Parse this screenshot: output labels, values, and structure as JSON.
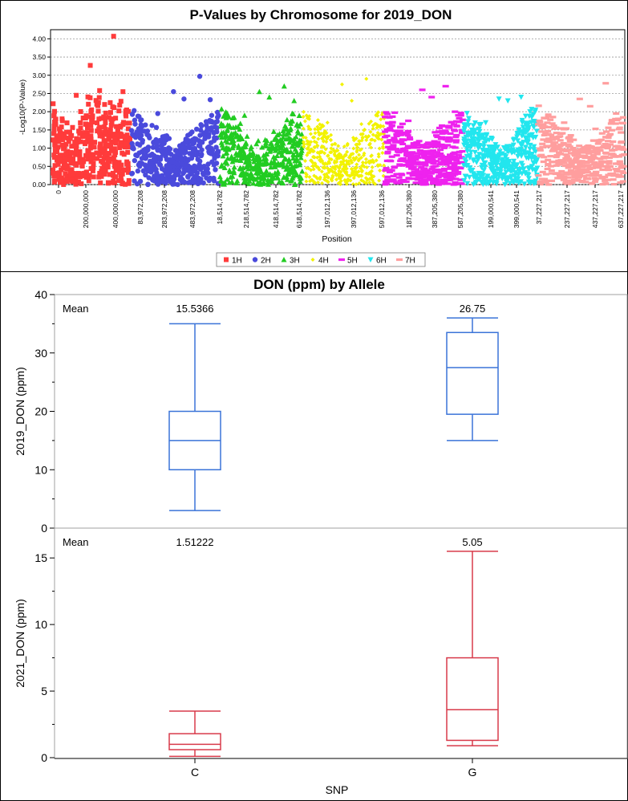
{
  "chart_data": [
    {
      "type": "scatter",
      "title": "P-Values by Chromosome for 2019_DON",
      "xlabel": "Position",
      "ylabel": "-Log10(P-Value)",
      "ylim": [
        0,
        4.25
      ],
      "y_ticks": [
        "0.00",
        "0.50",
        "1.00",
        "1.50",
        "2.00",
        "2.50",
        "3.00",
        "3.50",
        "4.00"
      ],
      "grid": true,
      "legend_position": "bottom",
      "x_tick_labels": [
        "0",
        "200,000,000",
        "400,000,000",
        "83,972,208",
        "283,972,208",
        "483,972,208",
        "18,514,782",
        "218,514,782",
        "418,514,782",
        "618,514,782",
        "197,012,136",
        "397,012,136",
        "597,012,136",
        "187,205,380",
        "387,205,380",
        "587,205,380",
        "199,000,541",
        "399,000,541",
        "37,227,217",
        "237,227,217",
        "437,227,217",
        "637,227,217"
      ],
      "series": [
        {
          "name": "1H",
          "marker": "square",
          "color": "#ff3b3b",
          "top_points": [
            4.07,
            3.27,
            2.58,
            2.55,
            2.45
          ]
        },
        {
          "name": "2H",
          "marker": "circle",
          "color": "#4a4adc",
          "top_points": [
            2.97,
            2.55,
            2.35,
            2.33,
            1.95
          ]
        },
        {
          "name": "3H",
          "marker": "triangle-up",
          "color": "#22cc22",
          "top_points": [
            2.7,
            2.55,
            2.4,
            2.3,
            1.9
          ]
        },
        {
          "name": "4H",
          "marker": "diamond",
          "color": "#f2f200",
          "top_points": [
            2.9,
            2.75,
            2.3,
            1.9,
            1.7
          ]
        },
        {
          "name": "5H",
          "marker": "dash",
          "color": "#ee22ee",
          "top_points": [
            2.7,
            2.6,
            2.4,
            2.0,
            1.75
          ]
        },
        {
          "name": "6H",
          "marker": "triangle-down",
          "color": "#22e6ee",
          "top_points": [
            2.4,
            2.35,
            2.3,
            2.0,
            1.7
          ]
        },
        {
          "name": "7H",
          "marker": "dash",
          "color": "#ff9e9e",
          "top_points": [
            2.78,
            2.35,
            2.15,
            1.95,
            1.7
          ]
        }
      ]
    },
    {
      "type": "box",
      "title": "DON (ppm) by Allele",
      "xlabel": "SNP",
      "categories": [
        "C",
        "G"
      ],
      "mean_label": "Mean",
      "panels": [
        {
          "ylabel": "2019_DON (ppm)",
          "ylim": [
            0,
            40
          ],
          "y_ticks": [
            0,
            10,
            20,
            30,
            40
          ],
          "color": "#3a73d8",
          "means": [
            "15.5366",
            "26.75"
          ],
          "boxes": [
            {
              "min": 3,
              "q1": 10,
              "median": 15,
              "q3": 20,
              "max": 35
            },
            {
              "min": 15,
              "q1": 19.5,
              "median": 27.5,
              "q3": 33.5,
              "max": 36
            }
          ]
        },
        {
          "ylabel": "2021_DON (ppm)",
          "ylim": [
            0,
            17
          ],
          "y_ticks": [
            0,
            5,
            10,
            15
          ],
          "color": "#d83a4a",
          "means": [
            "1.51222",
            "5.05"
          ],
          "boxes": [
            {
              "min": 0.1,
              "q1": 0.6,
              "median": 1.0,
              "q3": 1.8,
              "max": 3.5
            },
            {
              "min": 0.9,
              "q1": 1.3,
              "median": 3.6,
              "q3": 7.5,
              "max": 15.5
            }
          ]
        }
      ]
    }
  ]
}
